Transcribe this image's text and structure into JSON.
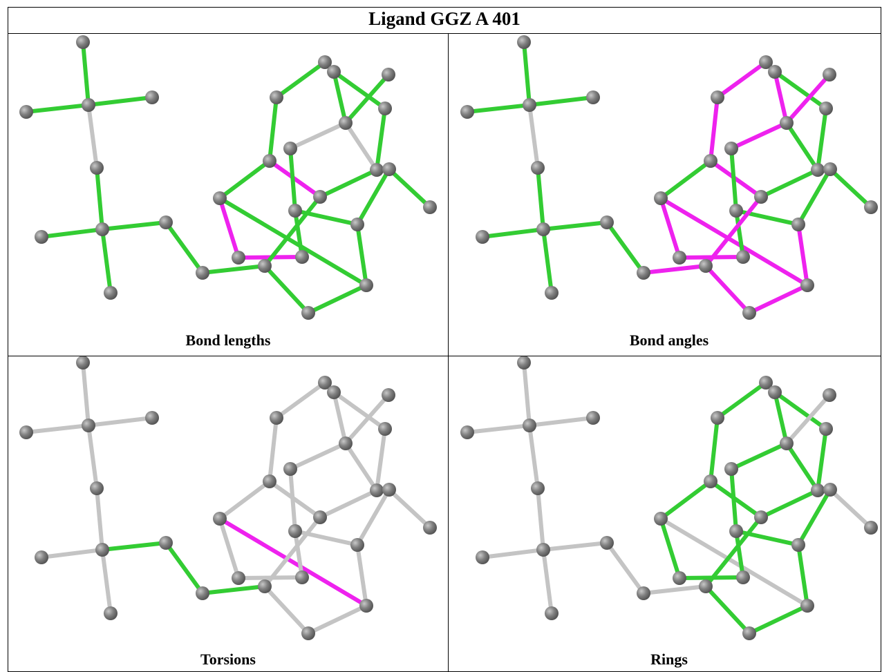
{
  "header": {
    "title": "Ligand GGZ A 401"
  },
  "panels": [
    {
      "caption": "Bond lengths"
    },
    {
      "caption": "Bond angles"
    },
    {
      "caption": "Torsions"
    },
    {
      "caption": "Rings"
    }
  ]
}
